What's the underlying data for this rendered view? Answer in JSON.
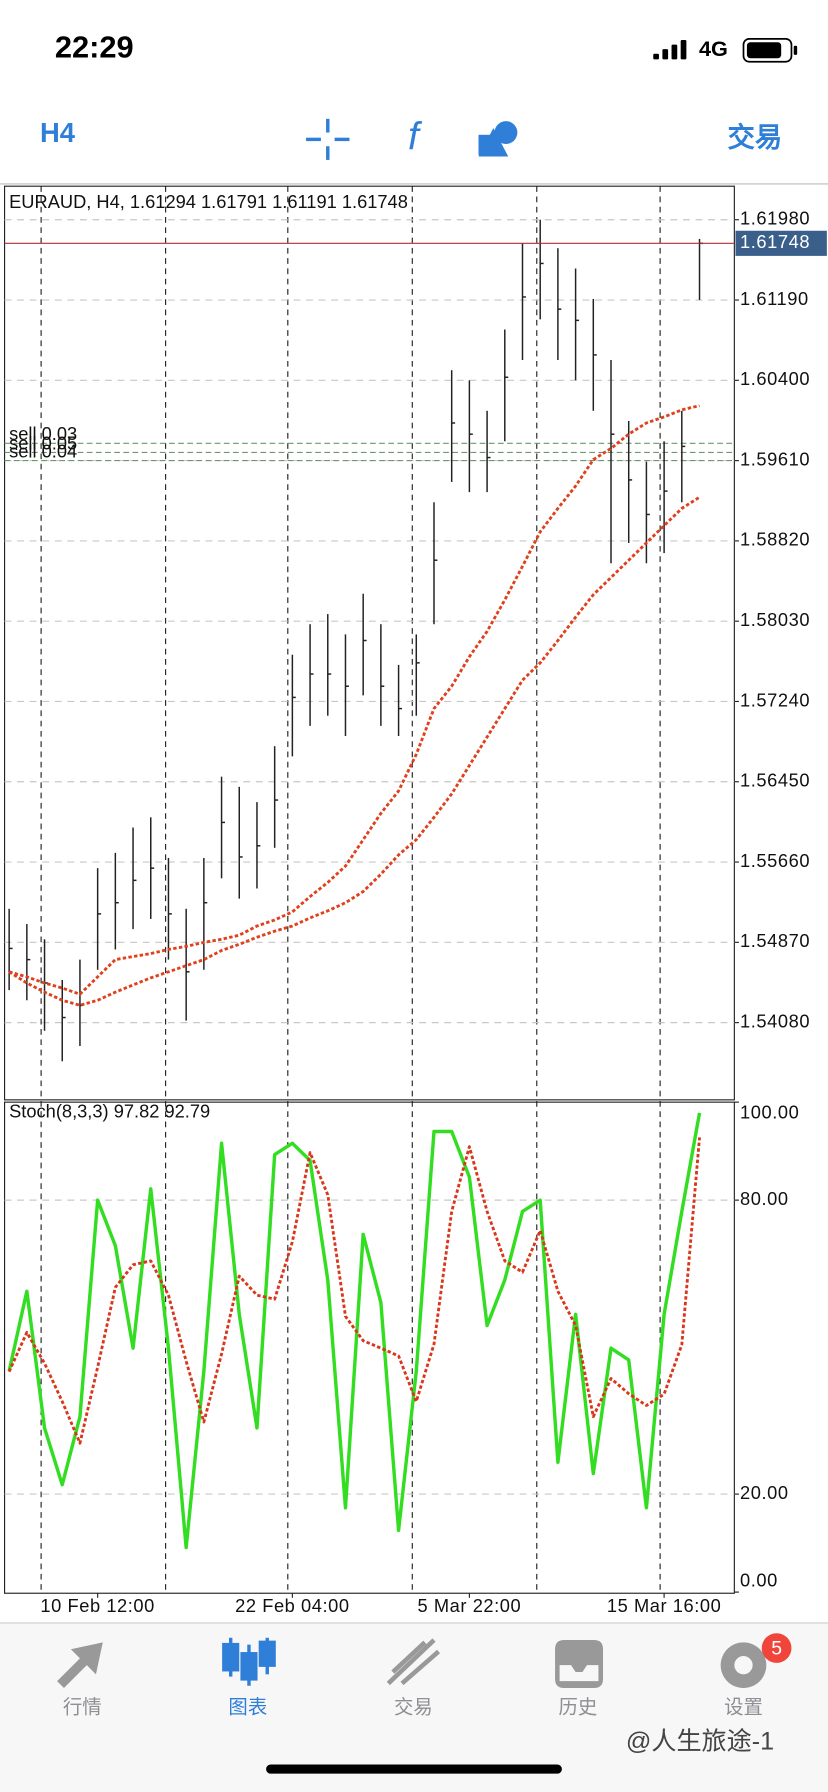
{
  "status_bar": {
    "time": "22:29",
    "network": "4G"
  },
  "toolbar": {
    "timeframe": "H4",
    "trade": "交易"
  },
  "chart_data": [
    {
      "type": "ohlc",
      "title": "EURAUD, H4, 1.61294 1.61791 1.61191 1.61748",
      "categories": [
        null,
        null,
        null,
        null,
        null,
        "10 Feb 12:00",
        null,
        null,
        null,
        null,
        null,
        null,
        null,
        null,
        null,
        null,
        "22 Feb 04:00",
        null,
        null,
        null,
        null,
        null,
        null,
        null,
        null,
        null,
        "5 Mar 22:00",
        null,
        null,
        null,
        null,
        null,
        null,
        null,
        null,
        null,
        null,
        "15 Mar 16:00",
        null,
        null
      ],
      "high": [
        1.552,
        1.5505,
        1.549,
        1.545,
        1.547,
        1.556,
        1.5575,
        1.56,
        1.561,
        1.557,
        1.552,
        1.557,
        1.565,
        1.564,
        1.5625,
        1.568,
        1.577,
        1.58,
        1.581,
        1.579,
        1.583,
        1.58,
        1.576,
        1.579,
        1.592,
        1.605,
        1.604,
        1.601,
        1.609,
        1.6175,
        1.6198,
        1.617,
        1.615,
        1.612,
        1.606,
        1.6,
        1.596,
        1.598,
        1.601,
        1.61791
      ],
      "low": [
        1.544,
        1.543,
        1.54,
        1.537,
        1.5385,
        1.546,
        1.548,
        1.55,
        1.551,
        1.547,
        1.541,
        1.546,
        1.555,
        1.553,
        1.554,
        1.558,
        1.567,
        1.57,
        1.571,
        1.569,
        1.573,
        1.57,
        1.569,
        1.571,
        1.58,
        1.594,
        1.593,
        1.593,
        1.598,
        1.606,
        1.61,
        1.606,
        1.604,
        1.601,
        1.586,
        1.588,
        1.586,
        1.587,
        1.592,
        1.61191
      ],
      "close": [
        1.5481,
        1.547,
        1.5447,
        1.5413,
        1.5425,
        1.5515,
        1.5526,
        1.5548,
        1.556,
        1.5515,
        1.5458,
        1.5526,
        1.5605,
        1.5571,
        1.5582,
        1.5627,
        1.5728,
        1.5751,
        1.5751,
        1.5739,
        1.5784,
        1.5739,
        1.5717,
        1.5762,
        1.5863,
        1.5998,
        1.5987,
        1.5964,
        1.6043,
        1.6122,
        1.6155,
        1.611,
        1.6099,
        1.6065,
        1.5987,
        1.5942,
        1.5908,
        1.5931,
        1.5975,
        1.61748
      ],
      "bar_color": "#222222",
      "series": [
        {
          "color": "#e0401c",
          "style": "dotted",
          "values": [
            1.5458,
            1.5453,
            1.5447,
            1.5442,
            1.5436,
            1.5453,
            1.547,
            1.5473,
            1.5476,
            1.548,
            1.5483,
            1.5487,
            1.549,
            1.5494,
            1.5503,
            1.5509,
            1.5517,
            1.5532,
            1.5546,
            1.5562,
            1.5588,
            1.5614,
            1.5636,
            1.5672,
            1.5717,
            1.5739,
            1.5768,
            1.5793,
            1.5824,
            1.5857,
            1.5891,
            1.5914,
            1.5936,
            1.5962,
            1.5973,
            1.5987,
            1.5998,
            1.6004,
            1.6011,
            1.6015
          ]
        },
        {
          "color": "#e0401c",
          "style": "dotted",
          "values": [
            1.5458,
            1.5447,
            1.5438,
            1.543,
            1.5425,
            1.543,
            1.5438,
            1.5445,
            1.5452,
            1.5458,
            1.5464,
            1.547,
            1.5479,
            1.5485,
            1.5492,
            1.5498,
            1.5503,
            1.5511,
            1.5518,
            1.5526,
            1.5537,
            1.5554,
            1.5573,
            1.5588,
            1.561,
            1.5633,
            1.5661,
            1.5689,
            1.5717,
            1.5745,
            1.5762,
            1.5784,
            1.5807,
            1.5829,
            1.5846,
            1.5863,
            1.588,
            1.5897,
            1.5914,
            1.5925
          ]
        }
      ],
      "current_price": {
        "value": 1.61748,
        "label": "1.61748"
      },
      "current_price_color": "#b03030",
      "orders": [
        {
          "label": "sell 0.03",
          "price": 1.5978
        },
        {
          "label": "sell 0.05",
          "price": 1.5969
        },
        {
          "label": "sell 0.04",
          "price": 1.5961
        }
      ],
      "ylim": [
        1.5332,
        1.6231
      ],
      "yticks": [
        {
          "value": 1.6198,
          "label": "1.61980"
        },
        {
          "value": 1.6119,
          "label": "1.61190"
        },
        {
          "value": 1.604,
          "label": "1.60400"
        },
        {
          "value": 1.5961,
          "label": "1.59610"
        },
        {
          "value": 1.5882,
          "label": "1.58820"
        },
        {
          "value": 1.5803,
          "label": "1.58030"
        },
        {
          "value": 1.5724,
          "label": "1.57240"
        },
        {
          "value": 1.5645,
          "label": "1.56450"
        },
        {
          "value": 1.5566,
          "label": "1.55660"
        },
        {
          "value": 1.5487,
          "label": "1.54870"
        },
        {
          "value": 1.5408,
          "label": "1.54080"
        }
      ],
      "grid": true
    },
    {
      "type": "line",
      "title": "Stoch(8,3,3) 97.82 92.79",
      "series": [
        {
          "color": "#33dd22",
          "style": "solid",
          "values": [
            45.1,
            61.4,
            33.5,
            21.9,
            35.8,
            80,
            70.7,
            49.8,
            82.3,
            49.8,
            9.1,
            45.1,
            91.6,
            56.7,
            33.5,
            89.3,
            91.6,
            88.1,
            63.7,
            17.2,
            73.0,
            59.1,
            12.6,
            45.1,
            94.0,
            94.0,
            84.7,
            54.4,
            63.7,
            77.7,
            80,
            26.5,
            56.7,
            24.2,
            49.8,
            47.4,
            17.2,
            56.7,
            77.7,
            97.82
          ]
        },
        {
          "color": "#d9361b",
          "style": "dotted",
          "values": [
            45,
            53,
            46.7,
            38.9,
            30.4,
            45.9,
            62.2,
            66.8,
            67.6,
            60.6,
            47.1,
            34.7,
            48.6,
            64.5,
            60.6,
            59.8,
            71.5,
            89.7,
            81.1,
            56.3,
            51.3,
            49.8,
            48.2,
            38.9,
            50.6,
            77.7,
            90.9,
            77.7,
            67.6,
            65.3,
            73.8,
            61.4,
            54.4,
            35.8,
            43.6,
            40.5,
            38.1,
            40.4,
            50.5,
            92.79
          ]
        }
      ],
      "ylim": [
        0,
        100
      ],
      "yticks": [
        {
          "value": 0,
          "label": "0.00"
        },
        {
          "value": 20,
          "label": "20.00"
        },
        {
          "value": 80,
          "label": "80.00"
        },
        {
          "value": 100,
          "label": "100.00"
        }
      ],
      "grid": true
    }
  ],
  "tabs": [
    {
      "label": "行情",
      "active": false
    },
    {
      "label": "图表",
      "active": true
    },
    {
      "label": "交易",
      "active": false
    },
    {
      "label": "历史",
      "active": false
    },
    {
      "label": "设置",
      "active": false,
      "badge": 5
    }
  ],
  "watermark": "@人生旅途-1"
}
